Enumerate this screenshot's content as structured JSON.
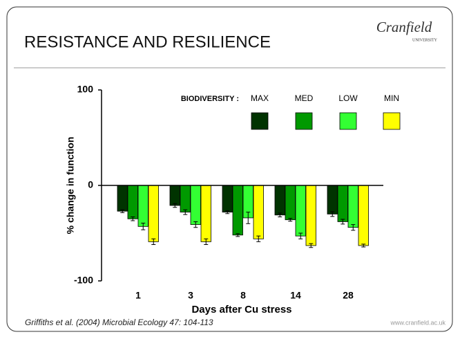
{
  "title": "RESISTANCE AND RESILIENCE",
  "logo": {
    "name": "Cranfield",
    "sub": "UNIVERSITY"
  },
  "footer": {
    "citation": "Griffiths et al. (2004) Microbial Ecology 47: 104-113",
    "url": "www.cranfield.ac.uk"
  },
  "chart_data": {
    "type": "bar",
    "ylabel": "% change in function",
    "xlabel": "Days after Cu stress",
    "legend_title": "BIODIVERSITY :",
    "categories": [
      "1",
      "3",
      "8",
      "14",
      "28"
    ],
    "series": [
      {
        "name": "MAX",
        "color": "#003300",
        "values": [
          -27,
          -21,
          -28,
          -31,
          -30
        ],
        "errors": [
          1.5,
          2,
          1.5,
          2,
          2.5
        ]
      },
      {
        "name": "MED",
        "color": "#009900",
        "values": [
          -35,
          -28,
          -52,
          -36,
          -38
        ],
        "errors": [
          2,
          2.5,
          1.5,
          1.5,
          2.5
        ]
      },
      {
        "name": "LOW",
        "color": "#33ff33",
        "values": [
          -43,
          -41,
          -34,
          -53,
          -44
        ],
        "errors": [
          3.5,
          3,
          6,
          3,
          3
        ]
      },
      {
        "name": "MIN",
        "color": "#ffff00",
        "values": [
          -59,
          -59,
          -56,
          -63,
          -63
        ],
        "errors": [
          3,
          3,
          3,
          2,
          1.5
        ]
      }
    ],
    "ylim": [
      -100,
      100
    ],
    "yticks": [
      -100,
      0,
      100
    ]
  }
}
